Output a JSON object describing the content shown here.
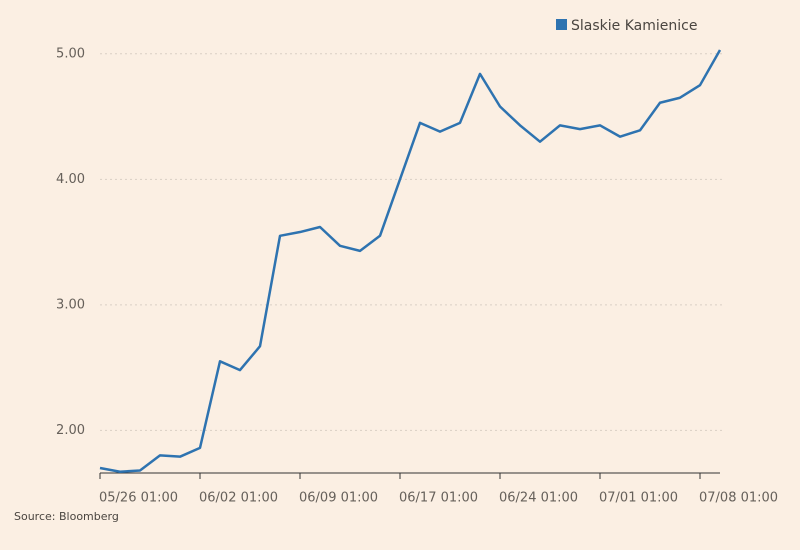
{
  "chart_data": {
    "type": "line",
    "source": "Source: Bloomberg",
    "categories": [
      "05/26 01:00",
      null,
      null,
      null,
      null,
      "06/02 01:00",
      null,
      null,
      null,
      null,
      "06/09 01:00",
      null,
      null,
      null,
      null,
      "06/17 01:00",
      null,
      null,
      null,
      null,
      "06/24 01:00",
      null,
      null,
      null,
      null,
      "07/01 01:00",
      null,
      null,
      null,
      null,
      "07/08 01:00",
      null
    ],
    "series": [
      {
        "name": "Slaskie Kamienice",
        "color": "#2e73b0",
        "values": [
          1.7,
          1.67,
          1.68,
          1.8,
          1.79,
          1.86,
          2.55,
          2.48,
          2.67,
          3.55,
          3.58,
          3.62,
          3.47,
          3.43,
          3.55,
          4.0,
          4.45,
          4.38,
          4.45,
          4.84,
          4.58,
          4.43,
          4.3,
          4.43,
          4.4,
          4.43,
          4.34,
          4.39,
          4.61,
          4.65,
          4.75,
          5.03
        ]
      }
    ],
    "ylim": [
      1.66,
      5.11
    ],
    "yticks": [
      {
        "value": 2,
        "label": "2.00"
      },
      {
        "value": 3,
        "label": "3.00"
      },
      {
        "value": 4,
        "label": "4.00"
      },
      {
        "value": 5,
        "label": "5.00"
      }
    ],
    "grid": true,
    "legend": "top-right"
  }
}
